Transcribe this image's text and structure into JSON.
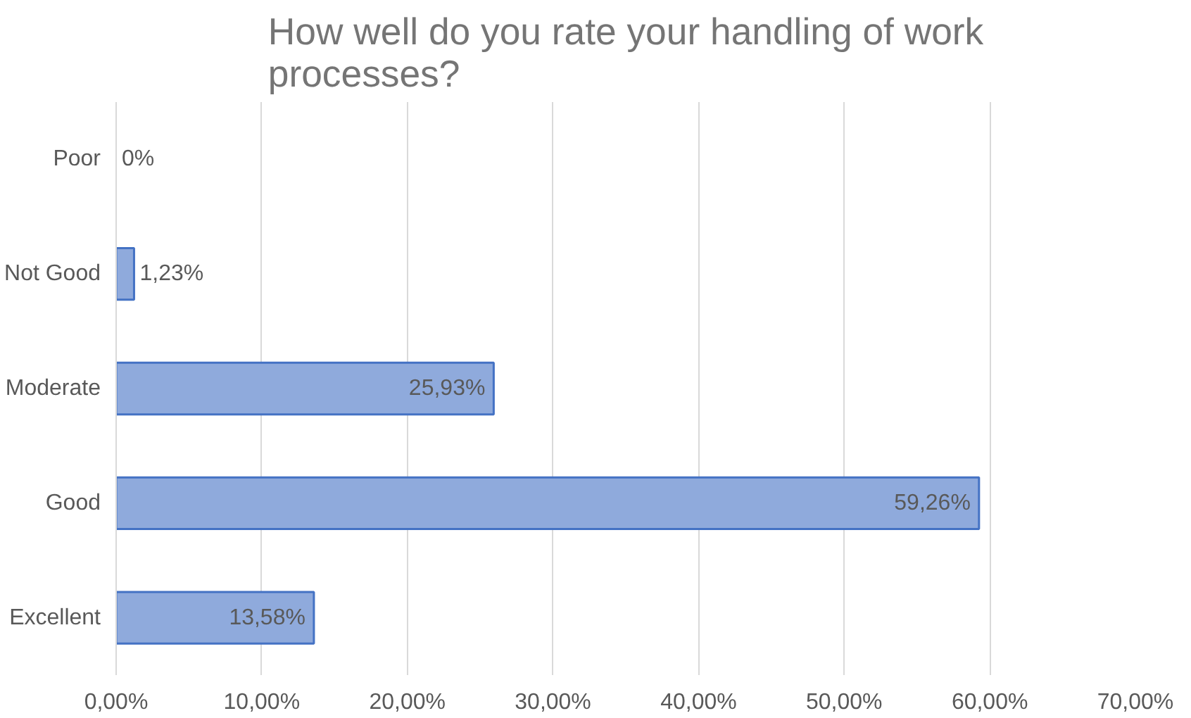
{
  "chart_data": {
    "type": "bar",
    "orientation": "horizontal",
    "title": "How well do you rate your handling of work processes?",
    "categories": [
      "Poor",
      "Not Good",
      "Moderate",
      "Good",
      "Excellent"
    ],
    "values": [
      0,
      1.23,
      25.93,
      59.26,
      13.58
    ],
    "value_labels": [
      "0%",
      "1,23%",
      "25,93%",
      "59,26%",
      "13,58%"
    ],
    "color": "#8faadc",
    "xlim": [
      0,
      70
    ],
    "xticks": [
      {
        "value": 0,
        "label": "0,00%"
      },
      {
        "value": 10,
        "label": "10,00%"
      },
      {
        "value": 20,
        "label": "20,00%"
      },
      {
        "value": 30,
        "label": "30,00%"
      },
      {
        "value": 40,
        "label": "40,00%"
      },
      {
        "value": 50,
        "label": "50,00%"
      },
      {
        "value": 60,
        "label": "60,00%"
      },
      {
        "value": 70,
        "label": "70,00%"
      }
    ],
    "grid": "x"
  }
}
